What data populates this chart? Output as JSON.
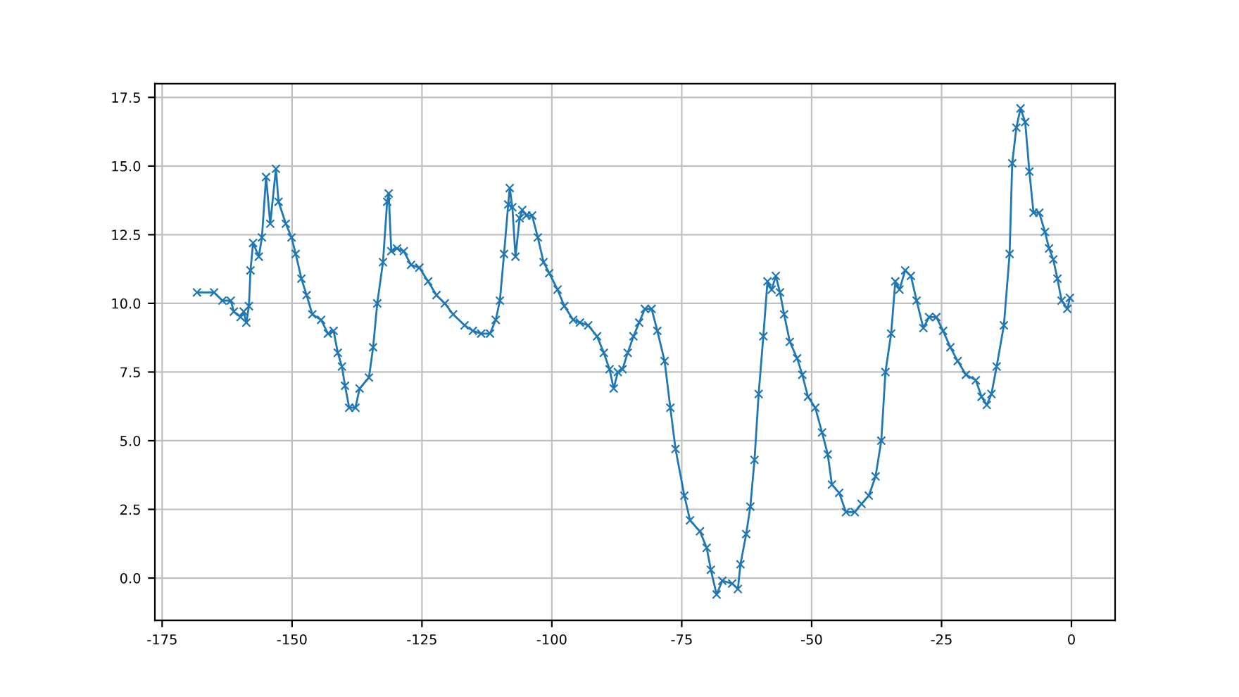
{
  "chart_data": {
    "type": "line",
    "marker": "cross",
    "line_style": "solid",
    "grid": true,
    "xlim": [
      -176.4,
      8.4
    ],
    "ylim": [
      -1.54,
      18.0
    ],
    "xticks": [
      -175,
      -150,
      -125,
      -100,
      -75,
      -50,
      -25,
      0
    ],
    "yticks": [
      {
        "value": 0,
        "label": "0.0"
      },
      {
        "value": 2.5,
        "label": "2.5"
      },
      {
        "value": 5,
        "label": "5.0"
      },
      {
        "value": 7.5,
        "label": "7.5"
      },
      {
        "value": 10,
        "label": "10.0"
      },
      {
        "value": 12.5,
        "label": "12.5"
      },
      {
        "value": 15,
        "label": "15.0"
      },
      {
        "value": 17.5,
        "label": "17.5"
      }
    ],
    "x": [
      -168.3,
      -165,
      -163.4,
      -161.8,
      -161.2,
      -159.9,
      -159.3,
      -158.8,
      -158.3,
      -158,
      -157.5,
      -156.4,
      -155.8,
      -155,
      -154.2,
      -153.1,
      -152.6,
      -151.2,
      -150.1,
      -149.3,
      -148.2,
      -147.2,
      -146.1,
      -144.4,
      -143.1,
      -142,
      -141.2,
      -140.4,
      -139.8,
      -139,
      -137.8,
      -137,
      -135.2,
      -134.4,
      -133.6,
      -132.5,
      -131.7,
      -131.4,
      -130.9,
      -129.8,
      -128.5,
      -127.1,
      -125.5,
      -123.8,
      -122.2,
      -120.6,
      -119,
      -116.8,
      -115.2,
      -113.6,
      -111.9,
      -110.8,
      -110,
      -109.2,
      -108.4,
      -108.1,
      -107.6,
      -107,
      -106.2,
      -105.7,
      -104.9,
      -103.8,
      -102.7,
      -101.6,
      -100.5,
      -98.9,
      -97.6,
      -95.9,
      -94.6,
      -93,
      -91.3,
      -90,
      -88.9,
      -88.1,
      -87.3,
      -86.4,
      -85.4,
      -84.3,
      -83.2,
      -82.1,
      -80.8,
      -79.7,
      -78.3,
      -77.2,
      -76.2,
      -74.5,
      -73.4,
      -71.5,
      -70.2,
      -69.4,
      -68.3,
      -67.2,
      -65.3,
      -64.2,
      -63.7,
      -62.6,
      -61.8,
      -61,
      -60.2,
      -59.3,
      -58.5,
      -57.7,
      -56.9,
      -56.1,
      -55.3,
      -54.2,
      -52.8,
      -51.8,
      -50.7,
      -49.3,
      -48,
      -46.9,
      -46.1,
      -44.7,
      -43.4,
      -41.7,
      -40.4,
      -39,
      -37.7,
      -36.6,
      -35.8,
      -34.7,
      -33.9,
      -33.1,
      -32,
      -30.9,
      -29.8,
      -28.5,
      -27.4,
      -26,
      -24.7,
      -23.3,
      -21.9,
      -20.3,
      -18.4,
      -17.3,
      -16.3,
      -15.4,
      -14.4,
      -13,
      -11.9,
      -11.4,
      -10.6,
      -9.8,
      -8.9,
      -8.1,
      -7.3,
      -6.2,
      -5.1,
      -4.3,
      -3.5,
      -2.7,
      -1.9,
      -0.8,
      -0.3
    ],
    "series": [
      {
        "color": "#1f77b4",
        "values": [
          10.4,
          10.4,
          10.1,
          10.1,
          9.7,
          9.5,
          9.7,
          9.3,
          9.9,
          11.2,
          12.2,
          11.7,
          12.4,
          14.6,
          12.9,
          14.9,
          13.7,
          12.9,
          12.4,
          11.8,
          10.9,
          10.3,
          9.6,
          9.4,
          8.9,
          9.0,
          8.2,
          7.7,
          7.0,
          6.2,
          6.2,
          6.9,
          7.3,
          8.4,
          10.0,
          11.5,
          13.7,
          14.0,
          11.9,
          12.0,
          11.9,
          11.4,
          11.3,
          10.8,
          10.3,
          10.0,
          9.6,
          9.2,
          9.0,
          8.9,
          8.9,
          9.4,
          10.1,
          11.8,
          13.6,
          14.2,
          13.5,
          11.7,
          13.1,
          13.4,
          13.2,
          13.2,
          12.4,
          11.5,
          11.1,
          10.5,
          9.9,
          9.4,
          9.3,
          9.2,
          8.8,
          8.2,
          7.6,
          6.9,
          7.5,
          7.6,
          8.2,
          8.8,
          9.3,
          9.8,
          9.8,
          9.0,
          7.9,
          6.2,
          4.7,
          3.0,
          2.1,
          1.7,
          1.1,
          0.3,
          -0.6,
          -0.1,
          -0.2,
          -0.4,
          0.5,
          1.6,
          2.6,
          4.3,
          6.7,
          8.8,
          10.8,
          10.5,
          11.0,
          10.4,
          9.6,
          8.6,
          8.0,
          7.4,
          6.6,
          6.2,
          5.3,
          4.5,
          3.4,
          3.1,
          2.4,
          2.4,
          2.7,
          3.0,
          3.7,
          5.0,
          7.5,
          8.9,
          10.8,
          10.5,
          11.2,
          11.0,
          10.1,
          9.1,
          9.5,
          9.5,
          9.0,
          8.4,
          7.9,
          7.4,
          7.2,
          6.6,
          6.3,
          6.7,
          7.7,
          9.2,
          11.8,
          15.1,
          16.4,
          17.1,
          16.6,
          14.8,
          13.3,
          13.3,
          12.6,
          12.0,
          11.6,
          10.9,
          10.1,
          9.8,
          10.2
        ]
      }
    ]
  }
}
